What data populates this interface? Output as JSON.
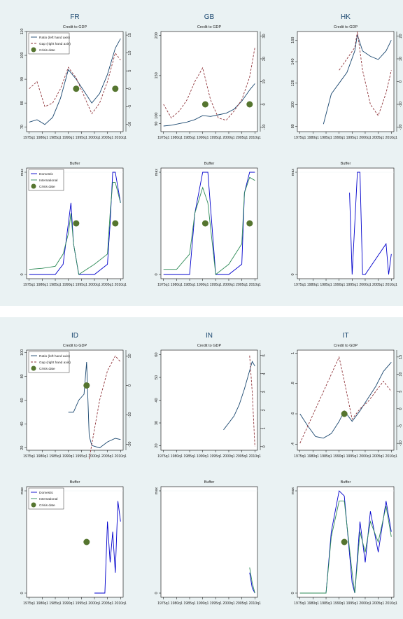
{
  "sections": [
    {
      "countries": [
        {
          "code": "FR",
          "top_title": "Credit to GDP",
          "bottom_title": "Buffer",
          "left_ticks": [
            "70",
            "80",
            "90",
            "100",
            "110"
          ],
          "right_ticks": [
            "-10",
            "-5",
            "0",
            "5",
            "10",
            "15"
          ],
          "bottom_ticks": [
            "0",
            "max"
          ]
        },
        {
          "code": "GB",
          "top_title": "Credit to GDP",
          "bottom_title": "Buffer",
          "left_ticks": [
            "90",
            "100",
            "150",
            "200"
          ],
          "right_ticks": [
            "-10",
            "0",
            "10",
            "20",
            "30"
          ],
          "bottom_ticks": [
            "0",
            "max"
          ]
        },
        {
          "code": "HK",
          "top_title": "Credit to GDP",
          "bottom_title": "Buffer",
          "left_ticks": [
            "80",
            "100",
            "120",
            "140",
            "160"
          ],
          "right_ticks": [
            "-20",
            "-10",
            "0",
            "10",
            "20"
          ],
          "bottom_ticks": [
            "0",
            "max"
          ]
        }
      ]
    },
    {
      "countries": [
        {
          "code": "ID",
          "top_title": "Credit to GDP",
          "bottom_title": "Buffer",
          "left_ticks": [
            "20",
            "40",
            "60",
            "80",
            "100"
          ],
          "right_ticks": [
            "-20",
            "-10",
            "0",
            "10"
          ],
          "bottom_ticks": [
            "0",
            "max"
          ]
        },
        {
          "code": "IN",
          "top_title": "Credit to GDP",
          "bottom_title": "Buffer",
          "left_ticks": [
            "20",
            "30",
            "40",
            "50",
            "60"
          ],
          "right_ticks": [
            "0",
            "1",
            "2",
            "3",
            "4",
            "5"
          ],
          "bottom_ticks": [
            "0",
            "max"
          ]
        },
        {
          "code": "IT",
          "top_title": "Credit to GDP",
          "bottom_title": "Buffer",
          "left_ticks": [
            ".4",
            ".6",
            ".8",
            "1"
          ],
          "right_ticks": [
            "-10",
            "-5",
            "0",
            "5",
            "10",
            "15"
          ],
          "bottom_ticks": [
            "0",
            "max"
          ]
        }
      ]
    }
  ],
  "x_ticks": [
    "1975q1",
    "1980q1",
    "1985q1",
    "1990q1",
    "1995q1",
    "2000q1",
    "2005q1",
    "2010q1"
  ],
  "legend_top": [
    "Ratio (left hand axis)",
    "Gap (right hand axis)",
    "Crisis date"
  ],
  "legend_bottom": [
    "Domestic",
    "International",
    "Crisis date"
  ],
  "colors": {
    "ratio": "#1a476f",
    "gap": "#90353b",
    "domestic": "#0000cc",
    "international": "#2e8b57",
    "crisis": "#55752f",
    "band": "#eaf2f3"
  },
  "chart_data": [
    {
      "type": "line",
      "panel": "FR Credit to GDP",
      "x": [
        1975,
        1978,
        1981,
        1984,
        1987,
        1990,
        1993,
        1996,
        1999,
        2002,
        2005,
        2008,
        2010
      ],
      "series": [
        {
          "name": "Ratio (left hand axis)",
          "values": [
            72,
            73,
            71,
            74,
            82,
            94,
            90,
            85,
            80,
            84,
            92,
            103,
            107
          ]
        },
        {
          "name": "Gap (right hand axis)",
          "values": [
            0,
            2,
            -5,
            -4,
            0,
            6,
            3,
            -2,
            -7,
            -4,
            2,
            10,
            8
          ]
        }
      ],
      "crisis_dates": [
        1993,
        2008
      ]
    },
    {
      "type": "line",
      "panel": "GB Credit to GDP",
      "x": [
        1975,
        1978,
        1981,
        1984,
        1987,
        1990,
        1993,
        1996,
        1999,
        2002,
        2005,
        2008,
        2010
      ],
      "series": [
        {
          "name": "Ratio (left hand axis)",
          "values": [
            87,
            88,
            90,
            92,
            95,
            100,
            99,
            101,
            103,
            108,
            118,
            132,
            140
          ]
        },
        {
          "name": "Gap (right hand axis)",
          "values": [
            0,
            -6,
            -3,
            2,
            10,
            16,
            2,
            -6,
            -7,
            -3,
            2,
            12,
            25
          ]
        }
      ],
      "crisis_dates": [
        1991,
        2008
      ]
    },
    {
      "type": "line",
      "panel": "HK Credit to GDP",
      "x": [
        1984,
        1987,
        1990,
        1993,
        1996,
        1997,
        1999,
        2002,
        2005,
        2008,
        2010
      ],
      "series": [
        {
          "name": "Ratio (left hand axis)",
          "values": [
            82,
            110,
            120,
            130,
            150,
            165,
            150,
            145,
            142,
            150,
            160
          ]
        },
        {
          "name": "Gap (right hand axis)",
          "values": [
            null,
            null,
            5,
            10,
            15,
            22,
            5,
            -10,
            -15,
            -5,
            5
          ]
        }
      ]
    },
    {
      "type": "line",
      "panel": "FR Buffer",
      "x": [
        1975,
        1980,
        1985,
        1988,
        1990,
        1991,
        1992,
        1994,
        2000,
        2005,
        2006,
        2007,
        2008,
        2010
      ],
      "series": [
        {
          "name": "Domestic",
          "values": [
            0,
            0,
            0,
            0.1,
            0.5,
            0.7,
            0.3,
            0,
            0,
            0.1,
            0.5,
            1,
            1,
            0.7
          ]
        },
        {
          "name": "International",
          "values": [
            0.05,
            0.06,
            0.08,
            0.2,
            0.4,
            0.6,
            0.3,
            0,
            0.1,
            0.2,
            0.6,
            0.9,
            0.9,
            0.7
          ]
        }
      ],
      "crisis_dates": [
        1993,
        2008
      ]
    },
    {
      "type": "line",
      "panel": "GB Buffer",
      "x": [
        1975,
        1980,
        1985,
        1987,
        1990,
        1992,
        1995,
        2000,
        2005,
        2006,
        2008,
        2010
      ],
      "series": [
        {
          "name": "Domestic",
          "values": [
            0,
            0,
            0,
            0.6,
            1,
            1,
            0,
            0,
            0.1,
            0.8,
            1,
            1
          ]
        },
        {
          "name": "International",
          "values": [
            0.05,
            0.05,
            0.2,
            0.6,
            0.85,
            0.7,
            0,
            0.1,
            0.3,
            0.8,
            0.95,
            0.92
          ]
        }
      ],
      "crisis_dates": [
        1991,
        2008
      ]
    },
    {
      "type": "line",
      "panel": "HK Buffer",
      "x": [
        1994,
        1995,
        1996,
        1997,
        1998,
        1999,
        2000,
        2008,
        2009,
        2010
      ],
      "series": [
        {
          "name": "Domestic",
          "values": [
            0.8,
            0,
            0.5,
            1,
            1,
            0,
            0,
            0.3,
            0,
            0.2
          ]
        }
      ]
    },
    {
      "type": "line",
      "panel": "ID Credit to GDP",
      "x": [
        1990,
        1992,
        1994,
        1996,
        1997,
        1998,
        1999,
        2002,
        2005,
        2008,
        2010
      ],
      "series": [
        {
          "name": "Ratio (left hand axis)",
          "values": [
            50,
            50,
            60,
            65,
            92,
            30,
            22,
            20,
            25,
            28,
            27
          ]
        },
        {
          "name": "Gap (right hand axis)",
          "values": [
            null,
            null,
            null,
            null,
            null,
            -25,
            -20,
            -5,
            5,
            10,
            8
          ]
        }
      ],
      "crisis_dates": [
        1997
      ]
    },
    {
      "type": "line",
      "panel": "IN Credit to GDP",
      "x": [
        1998,
        2000,
        2002,
        2004,
        2006,
        2008,
        2009,
        2010
      ],
      "series": [
        {
          "name": "Ratio (left hand axis)",
          "values": [
            27,
            30,
            33,
            38,
            45,
            53,
            57,
            55
          ]
        },
        {
          "name": "Gap (right hand axis)",
          "values": [
            null,
            null,
            null,
            null,
            null,
            5,
            3,
            0
          ]
        }
      ]
    },
    {
      "type": "line",
      "panel": "IT Credit to GDP",
      "x": [
        1975,
        1978,
        1981,
        1984,
        1987,
        1990,
        1992,
        1995,
        1998,
        2001,
        2004,
        2007,
        2010
      ],
      "series": [
        {
          "name": "Ratio (left hand axis)",
          "values": [
            0.6,
            0.52,
            0.45,
            0.44,
            0.47,
            0.55,
            0.62,
            0.55,
            0.62,
            0.7,
            0.78,
            0.88,
            0.94
          ]
        },
        {
          "name": "Gap (right hand axis)",
          "values": [
            -10,
            -5,
            0,
            5,
            10,
            15,
            8,
            -3,
            0,
            2,
            5,
            8,
            5
          ]
        }
      ],
      "crisis_dates": [
        1992
      ]
    },
    {
      "type": "line",
      "panel": "ID Buffer",
      "x": [
        2000,
        2003,
        2004,
        2005,
        2006,
        2007,
        2008,
        2009,
        2010
      ],
      "series": [
        {
          "name": "Domestic",
          "values": [
            0,
            0,
            0,
            0.7,
            0.3,
            0.6,
            0.2,
            0.9,
            0.7
          ]
        }
      ],
      "crisis_dates": [
        1997
      ]
    },
    {
      "type": "line",
      "panel": "IN Buffer",
      "x": [
        2008,
        2009,
        2010
      ],
      "series": [
        {
          "name": "Domestic",
          "values": [
            0.2,
            0.05,
            0
          ]
        },
        {
          "name": "International",
          "values": [
            0.25,
            0.1,
            0
          ]
        }
      ]
    },
    {
      "type": "line",
      "panel": "IT Buffer",
      "x": [
        1975,
        1985,
        1987,
        1990,
        1992,
        1995,
        1996,
        1998,
        2000,
        2002,
        2005,
        2008,
        2010
      ],
      "series": [
        {
          "name": "Domestic",
          "values": [
            0,
            0,
            0.6,
            1,
            0.95,
            0.1,
            0,
            0.7,
            0.3,
            0.8,
            0.4,
            0.9,
            0.6
          ]
        },
        {
          "name": "International",
          "values": [
            0,
            0,
            0.55,
            0.9,
            0.9,
            0.2,
            0,
            0.6,
            0.4,
            0.7,
            0.5,
            0.85,
            0.55
          ]
        }
      ],
      "crisis_dates": [
        1992
      ]
    }
  ]
}
